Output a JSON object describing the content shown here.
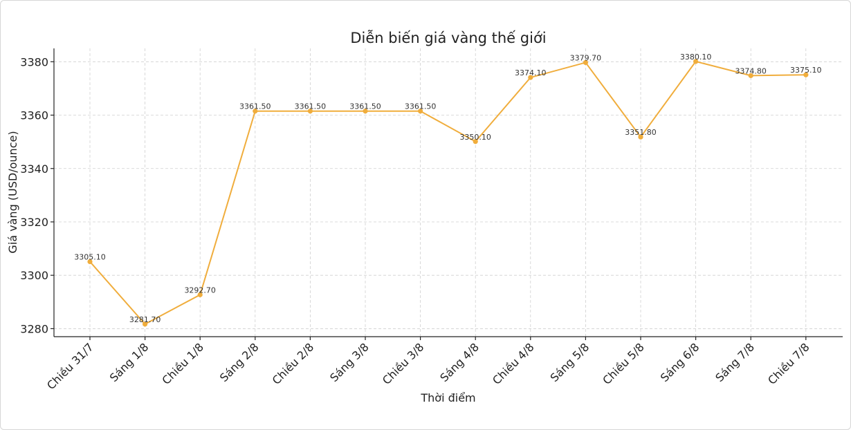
{
  "chart_data": {
    "type": "line",
    "title": "Diễn biến giá vàng thế giới",
    "xlabel": "Thời điểm",
    "ylabel": "Giá vàng (USD/ounce)",
    "categories": [
      "Chiều 31/7",
      "Sáng 1/8",
      "Chiều 1/8",
      "Sáng 2/8",
      "Chiều 2/8",
      "Sáng 3/8",
      "Chiều 3/8",
      "Sáng 4/8",
      "Chiều 4/8",
      "Sáng 5/8",
      "Chiều 5/8",
      "Sáng 6/8",
      "Sáng 7/8",
      "Chiều 7/8"
    ],
    "values": [
      3305.1,
      3281.7,
      3292.7,
      3361.5,
      3361.5,
      3361.5,
      3361.5,
      3350.1,
      3374.1,
      3379.7,
      3351.8,
      3380.1,
      3374.8,
      3375.1
    ],
    "data_labels": [
      "3305.10",
      "3281.70",
      "3292.70",
      "3361.50",
      "3361.50",
      "3361.50",
      "3361.50",
      "3350.10",
      "3374.10",
      "3379.70",
      "3351.80",
      "3380.10",
      "3374.80",
      "3375.10"
    ],
    "yticks": [
      3280,
      3300,
      3320,
      3340,
      3360,
      3380
    ],
    "ytick_labels": [
      "3280",
      "3300",
      "3320",
      "3340",
      "3360",
      "3380"
    ],
    "ylim": [
      3277,
      3385
    ],
    "grid": true,
    "line_color": "#f0ad3c"
  }
}
